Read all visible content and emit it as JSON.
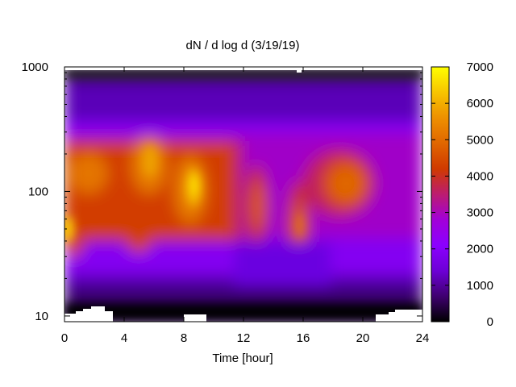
{
  "chart_data": {
    "type": "heatmap",
    "title": "dN / d log d (3/19/19)",
    "xlabel": "Time [hour]",
    "ylabel": "",
    "xlim": [
      0,
      24
    ],
    "ylim": [
      9,
      1000
    ],
    "y_scale": "log",
    "x_ticks": [
      0,
      4,
      8,
      12,
      16,
      20,
      24
    ],
    "x_tick_labels": [
      "0",
      "4",
      "8",
      "12",
      "16",
      "20",
      "24"
    ],
    "y_ticks": [
      10,
      100,
      1000
    ],
    "y_tick_labels": [
      "10",
      "100",
      "1000"
    ],
    "colorbar": {
      "range": [
        0,
        7000
      ],
      "ticks": [
        0,
        1000,
        2000,
        3000,
        4000,
        5000,
        6000,
        7000
      ],
      "tick_labels": [
        "0",
        "1000",
        "2000",
        "3000",
        "4000",
        "5000",
        "6000",
        "7000"
      ],
      "palette": "gnuplot"
    },
    "features": [
      {
        "x": 0.4,
        "y": 50,
        "value": 6200
      },
      {
        "x": 1.5,
        "y": 140,
        "value": 5400
      },
      {
        "x": 5.8,
        "y": 150,
        "value": 5800
      },
      {
        "x": 8.8,
        "y": 100,
        "value": 6300
      },
      {
        "x": 12.8,
        "y": 70,
        "value": 4300
      },
      {
        "x": 15.8,
        "y": 50,
        "value": 4500
      },
      {
        "x": 18.8,
        "y": 115,
        "value": 4700
      }
    ]
  }
}
